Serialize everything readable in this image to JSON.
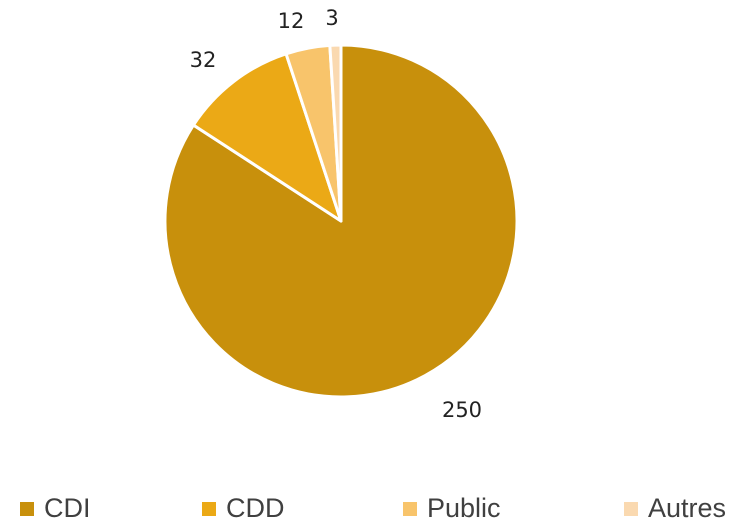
{
  "chart_data": {
    "type": "pie",
    "categories": [
      "CDI",
      "CDD",
      "Public",
      "Autres"
    ],
    "values": [
      250,
      32,
      12,
      3
    ],
    "colors": [
      "#C8900C",
      "#EBA916",
      "#F8C46B",
      "#FAD9B0"
    ],
    "data_labels": [
      "250",
      "32",
      "12",
      "3"
    ],
    "legend_position": "bottom",
    "start_angle_deg": 0,
    "direction": "clockwise"
  },
  "legend": {
    "items": [
      {
        "label": "CDI",
        "color": "#C8900C"
      },
      {
        "label": "CDD",
        "color": "#EBA916"
      },
      {
        "label": "Public",
        "color": "#F8C46B"
      },
      {
        "label": "Autres",
        "color": "#FAD9B0"
      }
    ]
  }
}
